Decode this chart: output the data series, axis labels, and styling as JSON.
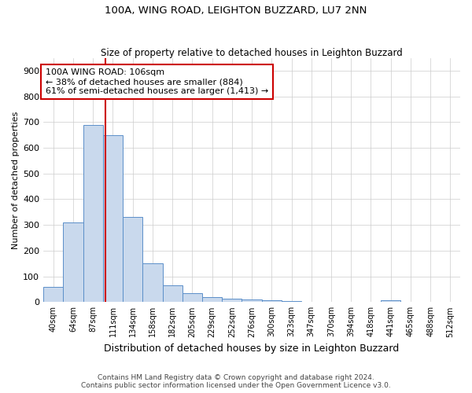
{
  "title1": "100A, WING ROAD, LEIGHTON BUZZARD, LU7 2NN",
  "title2": "Size of property relative to detached houses in Leighton Buzzard",
  "xlabel": "Distribution of detached houses by size in Leighton Buzzard",
  "ylabel": "Number of detached properties",
  "categories": [
    "40sqm",
    "64sqm",
    "87sqm",
    "111sqm",
    "134sqm",
    "158sqm",
    "182sqm",
    "205sqm",
    "229sqm",
    "252sqm",
    "276sqm",
    "300sqm",
    "323sqm",
    "347sqm",
    "370sqm",
    "394sqm",
    "418sqm",
    "441sqm",
    "465sqm",
    "488sqm",
    "512sqm"
  ],
  "values": [
    60,
    310,
    690,
    650,
    330,
    150,
    65,
    35,
    20,
    12,
    10,
    8,
    5,
    0,
    0,
    0,
    0,
    8,
    0,
    0,
    0
  ],
  "bar_color": "#c9d9ed",
  "bar_edge_color": "#5b8fc9",
  "grid_color": "#cccccc",
  "background_color": "#ffffff",
  "red_line_x": 2.62,
  "annotation_line0": "100A WING ROAD: 106sqm",
  "annotation_line1": "← 38% of detached houses are smaller (884)",
  "annotation_line2": "61% of semi-detached houses are larger (1,413) →",
  "annotation_box_color": "#ffffff",
  "annotation_box_edge_color": "#cc0000",
  "red_line_color": "#cc0000",
  "ylim": [
    0,
    950
  ],
  "yticks": [
    0,
    100,
    200,
    300,
    400,
    500,
    600,
    700,
    800,
    900
  ],
  "footer1": "Contains HM Land Registry data © Crown copyright and database right 2024.",
  "footer2": "Contains public sector information licensed under the Open Government Licence v3.0."
}
